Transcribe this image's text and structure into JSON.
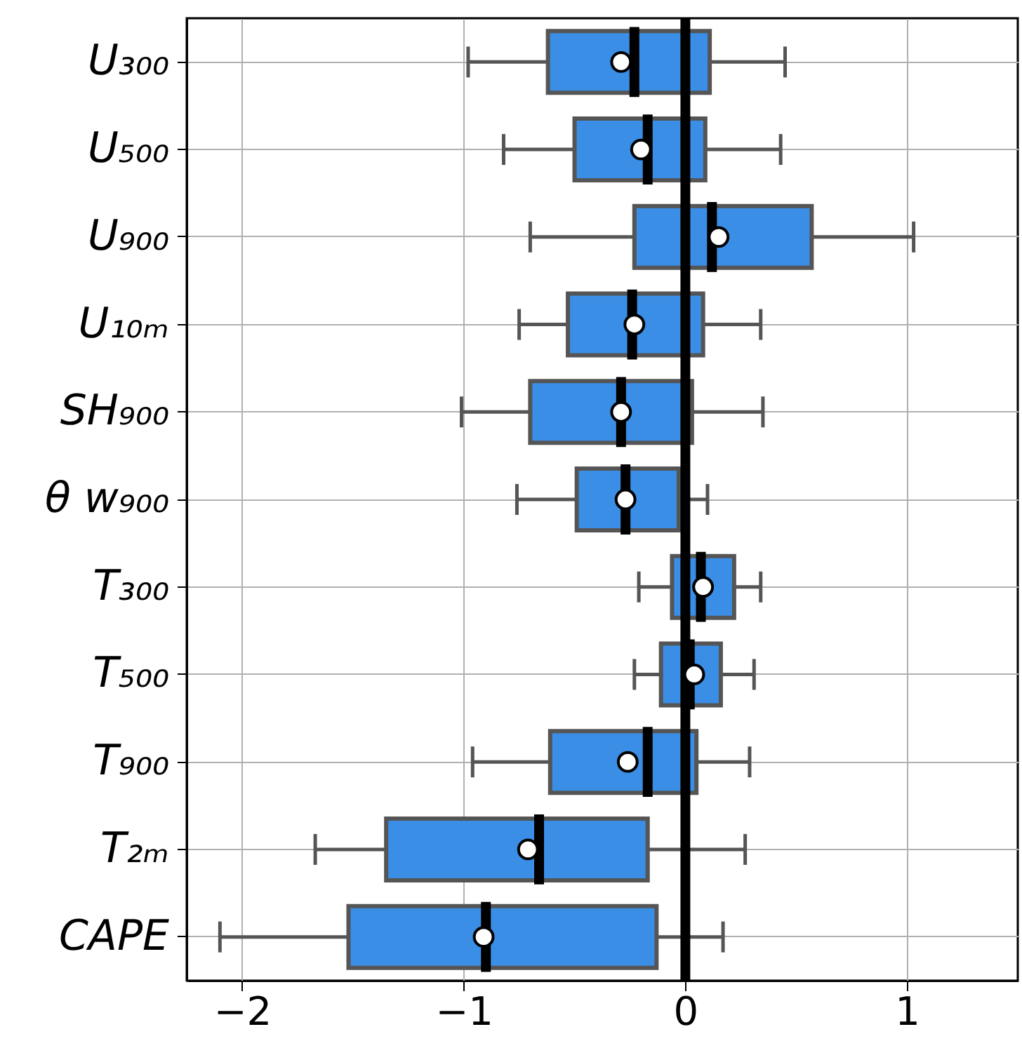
{
  "chart_data": {
    "type": "box",
    "orientation": "horizontal",
    "color": "#3a8ee6",
    "grid": true,
    "categories": [
      "U₃₀₀",
      "U₅₀₀",
      "U₉₀₀",
      "U₁₀ₘ",
      "SH₉₀₀",
      "θ w₉₀₀",
      "T₃₀₀",
      "T₅₀₀",
      "T₉₀₀",
      "T₂ₘ",
      "CAPE"
    ],
    "boxes": [
      {
        "low": -0.98,
        "q1": -0.62,
        "median": -0.23,
        "q3": 0.11,
        "high": 0.45,
        "mean": -0.29
      },
      {
        "low": -0.82,
        "q1": -0.5,
        "median": -0.17,
        "q3": 0.09,
        "high": 0.43,
        "mean": -0.2
      },
      {
        "low": -0.7,
        "q1": -0.23,
        "median": 0.12,
        "q3": 0.57,
        "high": 1.03,
        "mean": 0.15
      },
      {
        "low": -0.75,
        "q1": -0.53,
        "median": -0.24,
        "q3": 0.08,
        "high": 0.34,
        "mean": -0.23
      },
      {
        "low": -1.01,
        "q1": -0.7,
        "median": -0.29,
        "q3": 0.03,
        "high": 0.35,
        "mean": -0.29
      },
      {
        "low": -0.76,
        "q1": -0.49,
        "median": -0.27,
        "q3": -0.03,
        "high": 0.1,
        "mean": -0.27
      },
      {
        "low": -0.21,
        "q1": -0.06,
        "median": 0.07,
        "q3": 0.22,
        "high": 0.34,
        "mean": 0.08
      },
      {
        "low": -0.23,
        "q1": -0.11,
        "median": 0.02,
        "q3": 0.16,
        "high": 0.31,
        "mean": 0.04
      },
      {
        "low": -0.96,
        "q1": -0.61,
        "median": -0.17,
        "q3": 0.05,
        "high": 0.29,
        "mean": -0.26
      },
      {
        "low": -1.67,
        "q1": -1.35,
        "median": -0.66,
        "q3": -0.17,
        "high": 0.27,
        "mean": -0.71
      },
      {
        "low": -2.1,
        "q1": -1.52,
        "median": -0.9,
        "q3": -0.13,
        "high": 0.17,
        "mean": -0.91
      }
    ],
    "xlim": [
      -2.25,
      1.5
    ],
    "xticks": [
      -2,
      -1,
      0,
      1
    ],
    "ref_lines": [
      {
        "axis": "x",
        "value": 0,
        "color": "#000000"
      }
    ]
  }
}
